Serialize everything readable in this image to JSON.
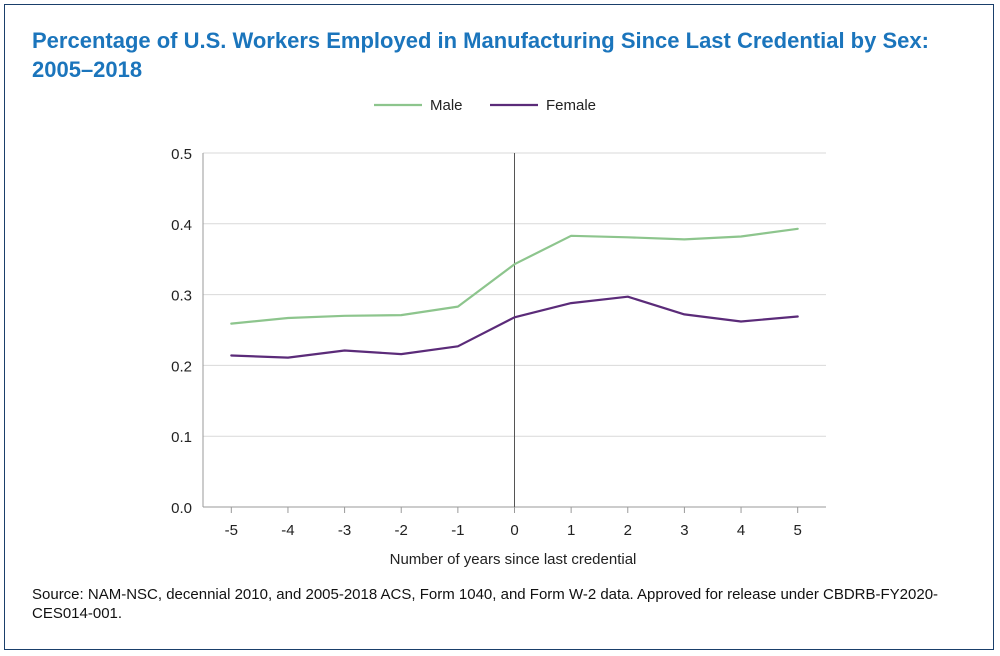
{
  "chart_data": {
    "type": "line",
    "title": "Percentage of U.S. Workers Employed in Manufacturing Since Last Credential by Sex: 2005–2018",
    "xlabel": "Number of years since last credential",
    "ylabel": "",
    "x": [
      "-5",
      "-4",
      "-3",
      "-2",
      "-1",
      "0",
      "1",
      "2",
      "3",
      "4",
      "5"
    ],
    "ylim": [
      0,
      0.5
    ],
    "yticks": [
      "0.0",
      "0.1",
      "0.2",
      "0.3",
      "0.4",
      "0.5"
    ],
    "grid": "horizontal",
    "reference_line_x": "0",
    "legend_position": "top-center",
    "series": [
      {
        "name": "Male",
        "color": "#8dc58d",
        "values": [
          0.259,
          0.267,
          0.27,
          0.271,
          0.283,
          0.343,
          0.383,
          0.381,
          0.378,
          0.382,
          0.393
        ]
      },
      {
        "name": "Female",
        "color": "#5b2b79",
        "values": [
          0.214,
          0.211,
          0.221,
          0.216,
          0.227,
          0.268,
          0.288,
          0.297,
          0.272,
          0.262,
          0.269
        ]
      }
    ]
  },
  "source": "Source: NAM-NSC, decennial 2010, and 2005-2018 ACS, Form 1040, and Form W-2 data. Approved for release under CBDRB-FY2020-CES014-001."
}
